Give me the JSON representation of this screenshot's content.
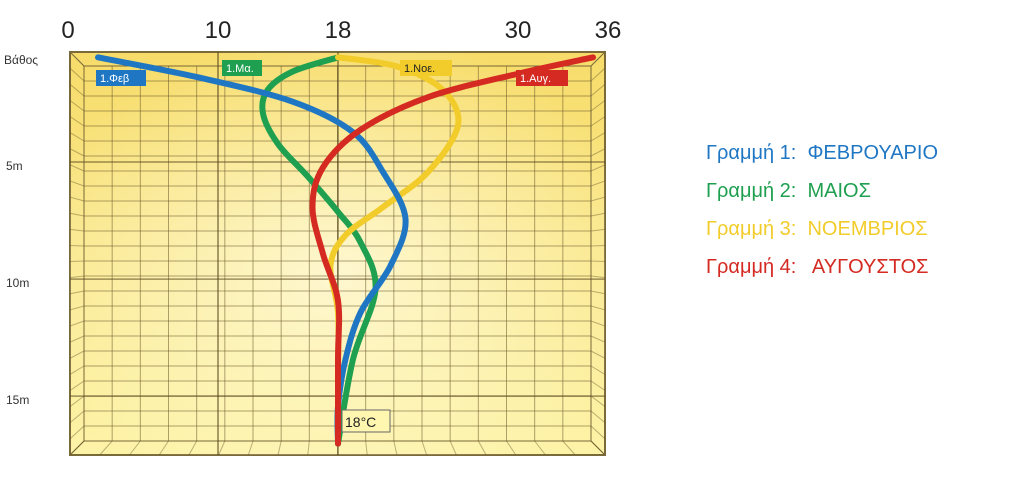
{
  "chart_data": {
    "type": "line",
    "xlabel": "",
    "ylabel": "Βάθος",
    "xlim": [
      0,
      36
    ],
    "ylim": [
      0,
      17
    ],
    "x_ticks": [
      "0",
      "10",
      "18",
      "30",
      "36"
    ],
    "x_tick_values": [
      0,
      10,
      18,
      30,
      36
    ],
    "y_ticks": [
      "5m",
      "10m",
      "15m"
    ],
    "y_tick_values": [
      5,
      10,
      15
    ],
    "grid": true,
    "annotation": "18°C",
    "series": [
      {
        "name": "1.Φεβ",
        "color": "#1f77c4",
        "points": [
          [
            2,
            0.1
          ],
          [
            9,
            1
          ],
          [
            15,
            2
          ],
          [
            19,
            3.3
          ],
          [
            21,
            5
          ],
          [
            22.5,
            7
          ],
          [
            21.5,
            9
          ],
          [
            19.5,
            11
          ],
          [
            18.5,
            13
          ],
          [
            18,
            15
          ],
          [
            18,
            16.6
          ]
        ]
      },
      {
        "name": "1.Μα.",
        "color": "#1fa050",
        "points": [
          [
            18,
            0.1
          ],
          [
            15,
            0.7
          ],
          [
            13.3,
            1.5
          ],
          [
            13,
            2.5
          ],
          [
            14,
            3.8
          ],
          [
            16,
            5.2
          ],
          [
            18,
            6.7
          ],
          [
            19.5,
            8
          ],
          [
            20.5,
            10
          ],
          [
            19,
            13
          ],
          [
            18,
            16.6
          ]
        ]
      },
      {
        "name": "1.Νοε.",
        "color": "#f2cc2a",
        "points": [
          [
            18,
            0.1
          ],
          [
            22,
            0.5
          ],
          [
            25,
            1.5
          ],
          [
            26,
            3
          ],
          [
            24,
            5
          ],
          [
            21,
            6.5
          ],
          [
            18.5,
            7.7
          ],
          [
            17.5,
            9
          ],
          [
            18,
            11
          ],
          [
            18,
            14
          ],
          [
            18,
            16.6
          ]
        ]
      },
      {
        "name": "1.Αυγ.",
        "color": "#d42a22",
        "points": [
          [
            35,
            0.1
          ],
          [
            30,
            0.8
          ],
          [
            24,
            1.8
          ],
          [
            19.5,
            3.2
          ],
          [
            17,
            4.8
          ],
          [
            16.3,
            6.5
          ],
          [
            17,
            8.5
          ],
          [
            18,
            10.5
          ],
          [
            18,
            13
          ],
          [
            18,
            16.6
          ]
        ]
      }
    ]
  },
  "legend": {
    "items": [
      {
        "label": "Γραμμή 1:  ΦΕΒΡΟΥΑΡΙΟ",
        "color": "#1f77c4"
      },
      {
        "label": "Γραμμή 2:  ΜΑΙΟΣ",
        "color": "#1fa050"
      },
      {
        "label": "Γραμμή 3:  ΝΟΕΜΒΡΙΟΣ",
        "color": "#f2cc2a"
      },
      {
        "label": "Γραμμή 4:   ΑΥΓΟΥΣΤΟΣ",
        "color": "#d42a22"
      }
    ]
  }
}
